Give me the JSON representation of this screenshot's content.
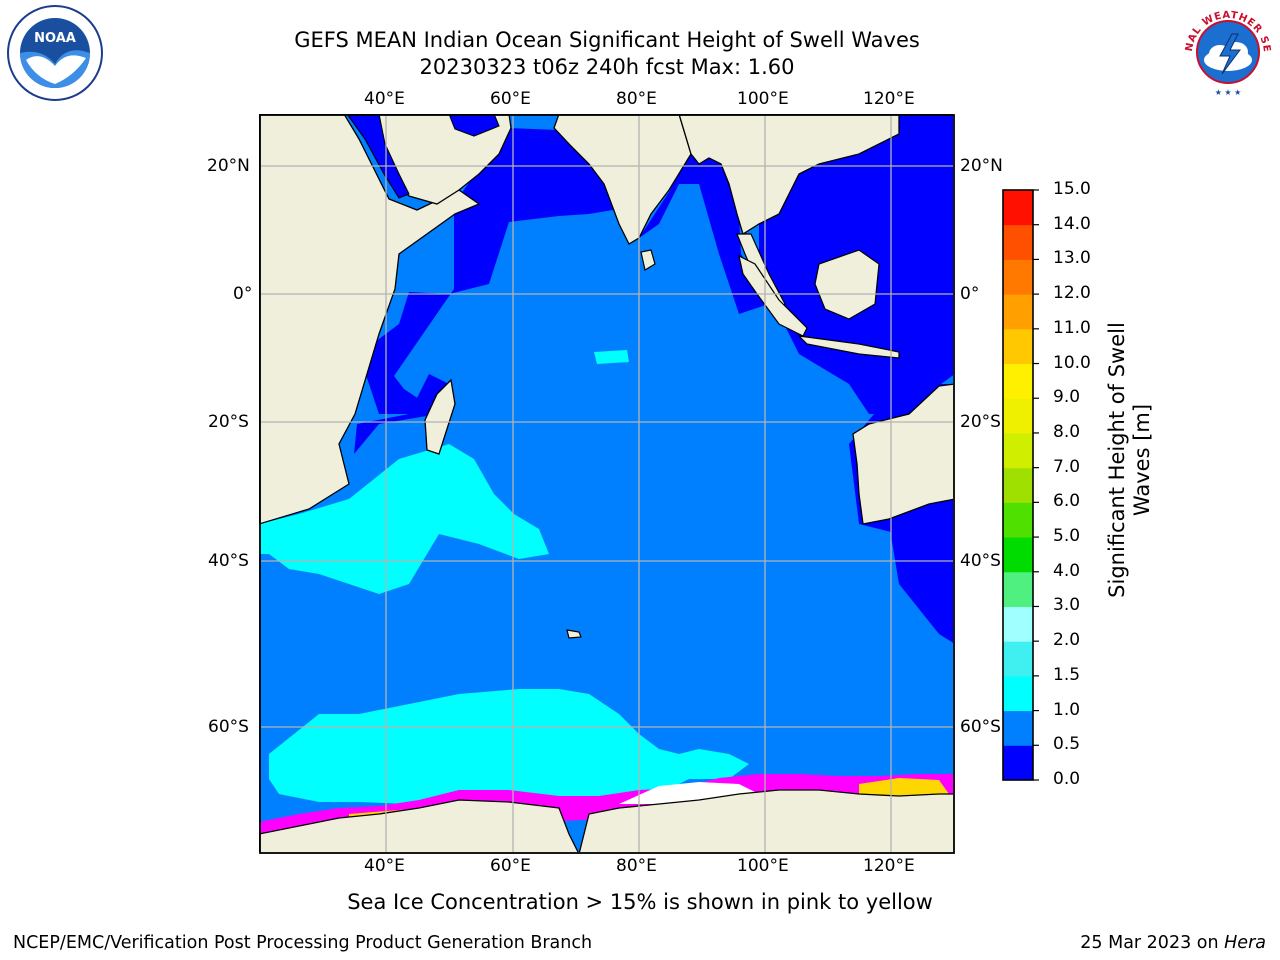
{
  "title": {
    "line1": "GEFS MEAN Indian Ocean Significant Height of Swell Waves",
    "line2": "20230323 t06z 240h fcst   Max: 1.60"
  },
  "map": {
    "region": "Indian Ocean",
    "lon_ticks": [
      "40°E",
      "60°E",
      "80°E",
      "100°E",
      "120°E"
    ],
    "lat_ticks": [
      "20°N",
      "0°",
      "20°S",
      "40°S",
      "60°S"
    ],
    "lon_range": [
      20,
      130
    ],
    "lat_range": [
      -70,
      28
    ],
    "grid": true,
    "colors": {
      "ocean_default": "#0080ff",
      "ocean_shallow": "#0000ff",
      "swell_high": "#00ffff",
      "land": "#efefdc",
      "sea_ice": [
        "#ff00ff",
        "#ff66cc",
        "#ffd700",
        "#ffffff"
      ]
    }
  },
  "colorbar": {
    "label": "Significant Height of Swell Waves [m]",
    "ticks": [
      "0.0",
      "0.5",
      "1.0",
      "1.5",
      "2.0",
      "3.0",
      "4.0",
      "5.0",
      "6.0",
      "7.0",
      "8.0",
      "9.0",
      "10.0",
      "11.0",
      "12.0",
      "13.0",
      "14.0",
      "15.0"
    ],
    "colors": [
      "#0000ff",
      "#0080ff",
      "#00ffff",
      "#40f0f0",
      "#a0ffff",
      "#50f080",
      "#00dc00",
      "#50e000",
      "#a0e000",
      "#d0ee00",
      "#eef000",
      "#fff000",
      "#ffc800",
      "#ffa000",
      "#ff7800",
      "#ff5000",
      "#ff1000"
    ]
  },
  "logos": {
    "noaa_text": "NOAA",
    "nws_text": "NATIONAL WEATHER SERVICE"
  },
  "note": "Sea Ice Concentration > 15% is shown in pink to yellow",
  "footer": {
    "left": "NCEP/EMC/Verification Post Processing Product Generation Branch",
    "right_date": "25 Mar 2023 on ",
    "right_host": "Hera"
  }
}
